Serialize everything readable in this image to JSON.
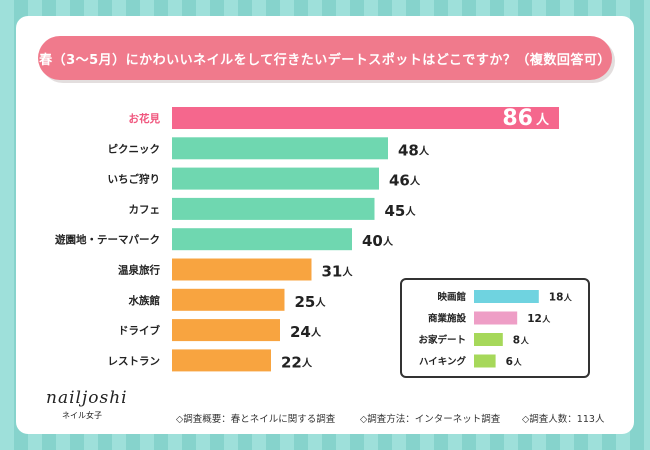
{
  "title": "春（3～5月）にかわいいネイルをして行きたいデートスポットはどこですか？（複数回答可）",
  "chart_data": {
    "type": "bar",
    "orientation": "horizontal",
    "unit": "人",
    "categories": [
      "お花見",
      "ピクニック",
      "いちご狩り",
      "カフェ",
      "遊園地・テーマパーク",
      "温泉旅行",
      "水族館",
      "ドライブ",
      "レストラン"
    ],
    "values": [
      86,
      48,
      46,
      45,
      40,
      31,
      25,
      24,
      22
    ],
    "colors": [
      "#f5678d",
      "#6fd7b0",
      "#6fd7b0",
      "#6fd7b0",
      "#6fd7b0",
      "#f8a440",
      "#f8a440",
      "#f8a440",
      "#f8a440"
    ],
    "highlight_index": 0,
    "legend_items": [
      {
        "label": "映画館",
        "value": 18,
        "color": "#6fd3e0"
      },
      {
        "label": "商業施設",
        "value": 12,
        "color": "#ee9ec6"
      },
      {
        "label": "お家デート",
        "value": 8,
        "color": "#a6d85a"
      },
      {
        "label": "ハイキング",
        "value": 6,
        "color": "#a6d85a"
      }
    ]
  },
  "logo": {
    "main": "nailjoshi",
    "sub": "ネイル女子"
  },
  "footer": {
    "overview": "◇調査概要：春とネイルに関する調査",
    "method": "◇調査方法：インターネット調査",
    "count": "◇調査人数：113人"
  },
  "colors": {
    "accent": "#f07a8c",
    "highlight_text": "#f0567e"
  }
}
